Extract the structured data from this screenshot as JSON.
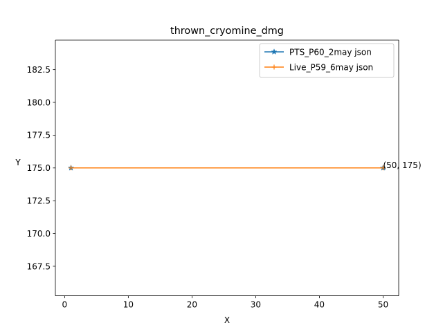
{
  "chart_data": {
    "type": "line",
    "title": "thrown_cryomine_dmg",
    "xlabel": "X",
    "ylabel": "Y",
    "xlim": [
      -1.45,
      52.45
    ],
    "ylim": [
      165.25,
      184.75
    ],
    "x_ticks": [
      0,
      10,
      20,
      30,
      40,
      50
    ],
    "y_ticks": [
      167.5,
      170.0,
      172.5,
      175.0,
      177.5,
      180.0,
      182.5
    ],
    "x_tick_labels": [
      "0",
      "10",
      "20",
      "30",
      "40",
      "50"
    ],
    "y_tick_labels": [
      "167.5",
      "170.0",
      "172.5",
      "175.0",
      "177.5",
      "180.0",
      "182.5"
    ],
    "grid": false,
    "legend_position": "upper right",
    "series": [
      {
        "name": "PTS_P60_2may json",
        "color": "#1f77b4",
        "marker": "star",
        "x": [
          1,
          50
        ],
        "y": [
          175,
          175
        ]
      },
      {
        "name": "Live_P59_6may json",
        "color": "#ff7f0e",
        "marker": "plus",
        "x": [
          1,
          50
        ],
        "y": [
          175,
          175
        ]
      }
    ],
    "annotations": [
      {
        "text": "(50, 175)",
        "x": 50,
        "y": 175
      }
    ]
  }
}
